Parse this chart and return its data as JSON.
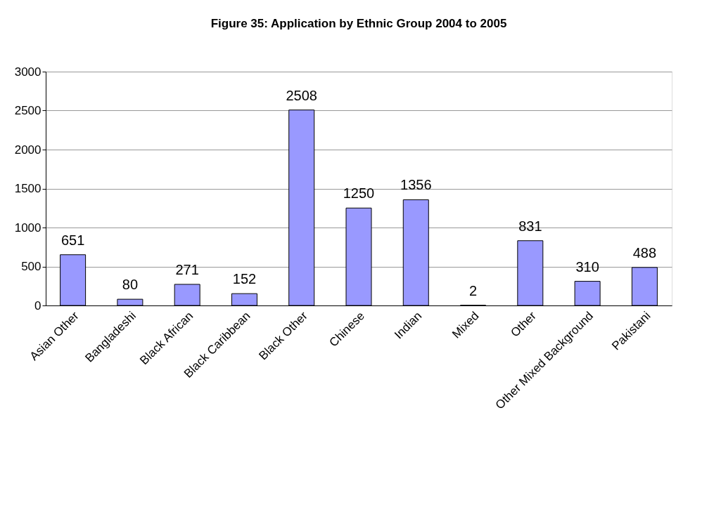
{
  "chart_data": {
    "type": "bar",
    "title": "Figure 35: Application by Ethnic Group 2004 to 2005",
    "categories": [
      "Asian Other",
      "Bangladeshi",
      "Black African",
      "Black Caribbean",
      "Black Other",
      "Chinese",
      "Indian",
      "Mixed",
      "Other",
      "Other Mixed Background",
      "Pakistani"
    ],
    "values": [
      651,
      80,
      271,
      152,
      2508,
      1250,
      1356,
      2,
      831,
      310,
      488
    ],
    "color": "#9999ff",
    "ylim": [
      0,
      3000
    ],
    "yticks": [
      0,
      500,
      1000,
      1500,
      2000,
      2500,
      3000
    ],
    "grid": "y",
    "data_labels": true
  }
}
